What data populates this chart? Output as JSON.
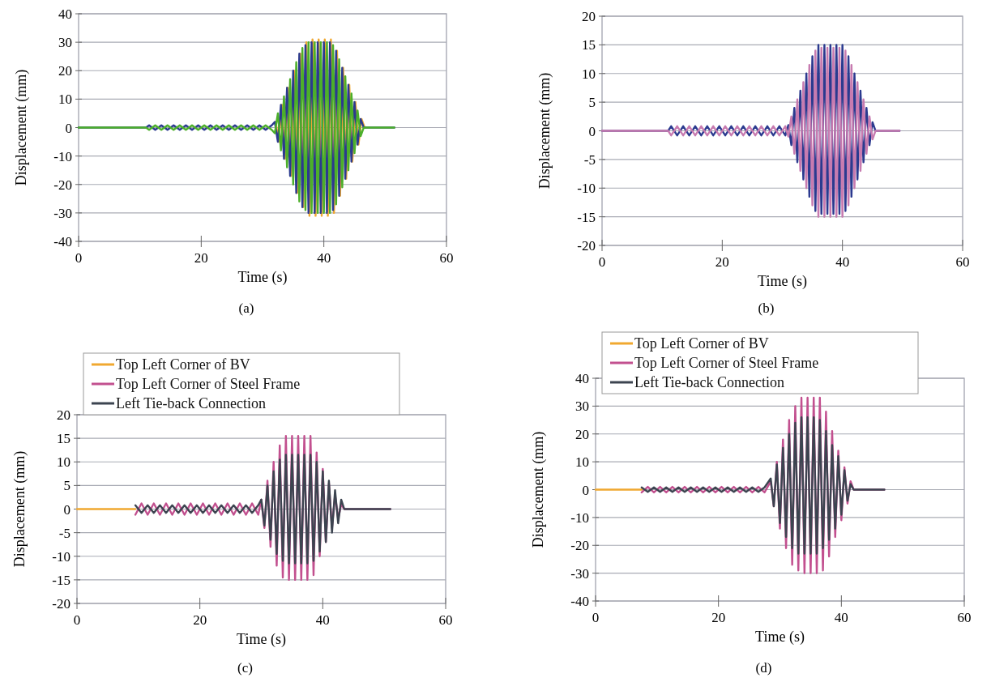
{
  "chart_data": [
    {
      "type": "line",
      "xlabel": "Time (s)",
      "ylabel": "Displacement (mm)",
      "annotations": [
        "(a)"
      ],
      "xlim": [
        0,
        60
      ],
      "xticks": [
        0,
        20,
        40,
        60
      ],
      "ylim": [
        -40,
        40
      ],
      "yticks": [
        -40,
        -30,
        -20,
        -10,
        0,
        10,
        20,
        30,
        40
      ],
      "grid": "y",
      "legend": false,
      "x": [
        0,
        11,
        11.5,
        12.5,
        13.5,
        14.5,
        15.5,
        16.5,
        17.5,
        18.5,
        19.5,
        20.5,
        21.5,
        22.5,
        23.5,
        24.5,
        25.5,
        26.5,
        27.5,
        28.5,
        29.5,
        30.5,
        31.5,
        32,
        32.5,
        33,
        33.5,
        34,
        34.5,
        35,
        35.5,
        36,
        36.5,
        37,
        37.5,
        38,
        38.5,
        39,
        39.5,
        40,
        40.5,
        41,
        41.5,
        42,
        42.5,
        43,
        43.5,
        44,
        44.5,
        45,
        45.5,
        46,
        46.5,
        51.5
      ],
      "series": [
        {
          "color": "#f0a830",
          "x": [
            32.15,
            32.65,
            33.15,
            33.65,
            34.15,
            34.65,
            35.15,
            35.65,
            36.15,
            36.65,
            37.15,
            37.65,
            38.15,
            38.65,
            39.15,
            39.65,
            40.15,
            40.65,
            41.15,
            41.65,
            42.15,
            42.65,
            43.15,
            43.65,
            44.15,
            44.65,
            45.15,
            45.65,
            46.15,
            46.65
          ],
          "values": [
            2,
            -5,
            8,
            -11,
            14,
            -17,
            20,
            -23,
            26,
            -28,
            30,
            -31,
            31,
            -31,
            31,
            -31,
            31,
            -31,
            31,
            -30,
            27,
            -24,
            21,
            -18,
            15,
            -12,
            9,
            -6,
            3,
            0
          ]
        },
        {
          "color": "#2b3a8f",
          "values": [
            0,
            0,
            0.8,
            -0.8,
            0.8,
            -0.8,
            0.8,
            -0.8,
            0.8,
            -0.8,
            0.8,
            -0.8,
            0.8,
            -0.8,
            0.8,
            -0.8,
            0.8,
            -0.8,
            0.8,
            -0.8,
            0.8,
            -0.8,
            0.8,
            2,
            -5,
            8,
            -11,
            14,
            -17,
            20,
            -23,
            26,
            -28,
            29,
            -30,
            30,
            -30,
            30,
            -30,
            30,
            -30,
            30,
            -29,
            27,
            -24,
            21,
            -18,
            15,
            -12,
            9,
            -6,
            3,
            0,
            0
          ]
        },
        {
          "color": "#4caf2a",
          "values": [
            0,
            0,
            -0.8,
            0.8,
            -0.8,
            0.8,
            -0.8,
            0.8,
            -0.8,
            0.8,
            -0.8,
            0.8,
            -0.8,
            0.8,
            -0.8,
            0.8,
            -0.8,
            0.8,
            -0.8,
            0.8,
            -0.8,
            0.8,
            -0.8,
            -2,
            5,
            -8,
            11,
            -14,
            17,
            -20,
            23,
            -26,
            28,
            -29,
            30,
            -30,
            30,
            -30,
            30,
            -30,
            30,
            -30,
            29,
            -27,
            24,
            -21,
            18,
            -15,
            12,
            -9,
            6,
            -3,
            0,
            0
          ]
        }
      ]
    },
    {
      "type": "line",
      "xlabel": "Time (s)",
      "ylabel": "Displacement (mm)",
      "annotations": [
        "(b)"
      ],
      "xlim": [
        0,
        60
      ],
      "xticks": [
        0,
        20,
        40,
        60
      ],
      "ylim": [
        -20,
        20
      ],
      "yticks": [
        -20,
        -15,
        -10,
        -5,
        0,
        5,
        10,
        15,
        20
      ],
      "grid": "y",
      "legend": false,
      "x": [
        0,
        11,
        11.5,
        12.5,
        13.5,
        14.5,
        15.5,
        16.5,
        17.5,
        18.5,
        19.5,
        20.5,
        21.5,
        22.5,
        23.5,
        24.5,
        25.5,
        26.5,
        27.5,
        28.5,
        29.5,
        30.5,
        31,
        31.5,
        32,
        32.5,
        33,
        33.5,
        34,
        34.5,
        35,
        35.5,
        36,
        36.5,
        37,
        37.5,
        38,
        38.5,
        39,
        39.5,
        40,
        40.5,
        41,
        41.5,
        42,
        42.5,
        43,
        43.5,
        44,
        44.5,
        45,
        45.5,
        49.5
      ],
      "series": [
        {
          "color": "#2b3a8f",
          "values": [
            0,
            0,
            0.8,
            -0.8,
            0.8,
            -0.8,
            0.8,
            -0.8,
            0.8,
            -0.8,
            0.8,
            -0.8,
            0.8,
            -0.8,
            0.8,
            -0.8,
            0.8,
            -0.8,
            0.8,
            -0.8,
            0.8,
            -0.8,
            1,
            -2.5,
            4,
            -5.5,
            7,
            -8.5,
            10,
            -11.5,
            13,
            -14,
            15,
            -14.5,
            15,
            -14.5,
            15,
            -14.5,
            15,
            -14.5,
            15,
            -14,
            13,
            -11.5,
            10,
            -8.5,
            7,
            -5.5,
            4,
            -2.5,
            1.5,
            0,
            0
          ]
        },
        {
          "color": "#c77bb0",
          "values": [
            0,
            0,
            -0.8,
            0.8,
            -0.8,
            0.8,
            -0.8,
            0.8,
            -0.8,
            0.8,
            -0.8,
            0.8,
            -0.8,
            0.8,
            -0.8,
            0.8,
            -0.8,
            0.8,
            -0.8,
            0.8,
            -0.8,
            0.8,
            -1,
            2.5,
            -4,
            5.5,
            -7,
            8.5,
            -10,
            11.5,
            -13,
            14,
            -15,
            14.5,
            -15,
            14.5,
            -15,
            14.5,
            -15,
            14.5,
            -15,
            14,
            -13,
            11.5,
            -10,
            8.5,
            -7,
            5.5,
            -4,
            2.5,
            -1.5,
            0,
            0
          ]
        }
      ]
    },
    {
      "type": "line",
      "xlabel": "Time (s)",
      "ylabel": "Displacement (mm)",
      "annotations": [
        "(c)"
      ],
      "xlim": [
        0,
        60
      ],
      "xticks": [
        0,
        20,
        40,
        60
      ],
      "ylim": [
        -20,
        20
      ],
      "yticks": [
        -20,
        -15,
        -10,
        -5,
        0,
        5,
        10,
        15,
        20
      ],
      "grid": "y",
      "legend": "top left",
      "x": [
        9.5,
        10.5,
        11.5,
        12.5,
        13.5,
        14.5,
        15.5,
        16.5,
        17.5,
        18.5,
        19.5,
        20.5,
        21.5,
        22.5,
        23.5,
        24.5,
        25.5,
        26.5,
        27.5,
        28.5,
        29.5,
        30,
        30.5,
        31,
        31.5,
        32,
        32.5,
        33,
        33.5,
        34,
        34.5,
        35,
        35.5,
        36,
        36.5,
        37,
        37.5,
        38,
        38.5,
        39,
        39.5,
        40,
        40.5,
        41,
        41.5,
        42,
        42.5,
        43,
        43.5,
        51
      ],
      "series": [
        {
          "name": "Top Left Corner of BV",
          "color": "#f0a830",
          "x": [
            0,
            9.5
          ],
          "values": [
            0,
            0
          ]
        },
        {
          "name": "Top Left Corner of Steel Frame",
          "color": "#c2508f",
          "values": [
            -1.2,
            1.2,
            -1.2,
            1.2,
            -1.2,
            1.2,
            -1.2,
            1.2,
            -1.2,
            1.2,
            -1.2,
            1.2,
            -1.2,
            1.2,
            -1.2,
            1.2,
            -1.2,
            1.2,
            -1.2,
            1.2,
            -1.2,
            2,
            -4,
            6,
            -8,
            10,
            -12,
            13.5,
            -14.5,
            15.5,
            -15,
            15.5,
            -15,
            15.5,
            -15,
            15.5,
            -15,
            15.5,
            -14,
            12,
            -10,
            8.5,
            -7,
            5.5,
            -4,
            3,
            -2,
            1,
            0,
            0
          ]
        },
        {
          "name": "Left Tie-back Connection",
          "color": "#3c4450",
          "values": [
            0.8,
            -0.8,
            0.8,
            -0.8,
            0.8,
            -0.8,
            0.8,
            -0.8,
            0.8,
            -0.8,
            0.8,
            -0.8,
            0.8,
            -0.8,
            0.8,
            -0.8,
            0.8,
            -0.8,
            0.8,
            -0.8,
            0.8,
            2,
            -3.5,
            5,
            -6.5,
            8,
            -9.5,
            10.5,
            -11,
            11.5,
            -11.5,
            11.5,
            -11.5,
            11.5,
            -11.5,
            11.5,
            -11.5,
            11.5,
            -11,
            10,
            -9,
            8,
            -7,
            6,
            -5,
            4,
            -3,
            2,
            0,
            0
          ]
        }
      ]
    },
    {
      "type": "line",
      "xlabel": "Time (s)",
      "ylabel": "Displacement (mm)",
      "annotations": [
        "(d)"
      ],
      "xlim": [
        0,
        60
      ],
      "xticks": [
        0,
        20,
        40,
        60
      ],
      "ylim": [
        -40,
        40
      ],
      "yticks": [
        -40,
        -30,
        -20,
        -10,
        0,
        10,
        20,
        30,
        40
      ],
      "grid": "y",
      "legend": "top left",
      "x": [
        7.5,
        8.5,
        9.5,
        10.5,
        11.5,
        12.5,
        13.5,
        14.5,
        15.5,
        16.5,
        17.5,
        18.5,
        19.5,
        20.5,
        21.5,
        22.5,
        23.5,
        24.5,
        25.5,
        26.5,
        27.5,
        28.5,
        29,
        29.5,
        30,
        30.5,
        31,
        31.5,
        32,
        32.5,
        33,
        33.5,
        34,
        34.5,
        35,
        35.5,
        36,
        36.5,
        37,
        37.5,
        38,
        38.5,
        39,
        39.5,
        40,
        40.5,
        41,
        41.5,
        42,
        47
      ],
      "series": [
        {
          "name": "Top Left Corner of BV",
          "color": "#f0a830",
          "x": [
            0,
            7.5
          ],
          "values": [
            0,
            0
          ]
        },
        {
          "name": "Top Left Corner of Steel Frame",
          "color": "#c2508f",
          "values": [
            -1,
            1,
            -1,
            1,
            -1,
            1,
            -1,
            1,
            -1,
            1,
            -1,
            1,
            -1,
            1,
            -1,
            1,
            -1,
            1,
            -1,
            1,
            -1,
            3,
            -6,
            10,
            -14,
            18,
            -21,
            25,
            -27,
            30,
            -29,
            33,
            -30,
            33,
            -30,
            33,
            -30,
            33,
            -29,
            28,
            -24,
            21,
            -17,
            14,
            -11,
            8,
            -5,
            3,
            0,
            0
          ]
        },
        {
          "name": "Left Tie-back Connection",
          "color": "#3c4450",
          "values": [
            0.8,
            -0.8,
            0.8,
            -0.8,
            0.8,
            -0.8,
            0.8,
            -0.8,
            0.8,
            -0.8,
            0.8,
            -0.8,
            0.8,
            -0.8,
            0.8,
            -0.8,
            0.8,
            -0.8,
            0.8,
            -0.8,
            0.8,
            4,
            -6,
            9,
            -12,
            15,
            -17,
            20,
            -21,
            24,
            -23,
            26,
            -23,
            26,
            -23,
            26,
            -23,
            25,
            -21,
            21,
            -18,
            16,
            -14,
            12,
            -9,
            7,
            -4,
            2,
            0,
            0
          ]
        }
      ]
    }
  ]
}
